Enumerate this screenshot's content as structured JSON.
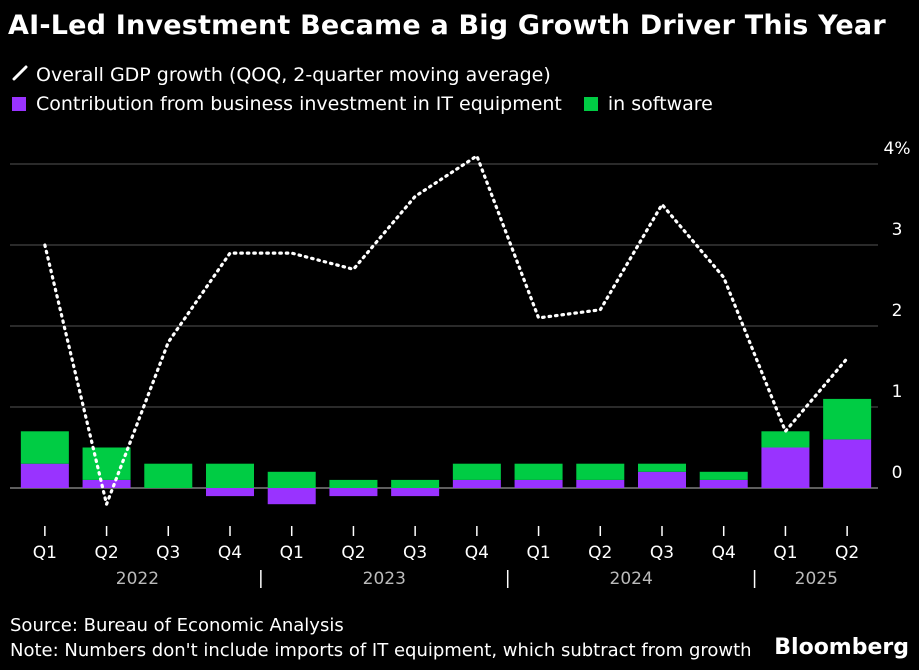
{
  "title": "AI-Led Investment Became a Big Growth Driver This Year",
  "legend": {
    "line_label": "Overall GDP growth (QOQ, 2-quarter moving average)",
    "it_label": "Contribution from business investment in IT equipment",
    "software_label": "in software"
  },
  "footer": {
    "source": "Source: Bureau of Economic Analysis",
    "note": "Note: Numbers don't include imports of IT equipment, which subtract from growth",
    "brand": "Bloomberg"
  },
  "colors": {
    "it": "#9933ff",
    "software": "#00cc44",
    "line": "#ffffff",
    "grid": "#555555",
    "background": "#000000"
  },
  "chart_data": {
    "type": "bar",
    "categories": [
      "Q1",
      "Q2",
      "Q3",
      "Q4",
      "Q1",
      "Q2",
      "Q3",
      "Q4",
      "Q1",
      "Q2",
      "Q3",
      "Q4",
      "Q1",
      "Q2"
    ],
    "years": [
      {
        "label": "2022",
        "start": 0,
        "end": 3
      },
      {
        "label": "2023",
        "start": 4,
        "end": 7
      },
      {
        "label": "2024",
        "start": 8,
        "end": 11
      },
      {
        "label": "2025",
        "start": 12,
        "end": 13
      }
    ],
    "series": [
      {
        "name": "Contribution from business investment in IT equipment",
        "values": [
          0.3,
          0.1,
          0.0,
          -0.1,
          -0.2,
          -0.1,
          -0.1,
          0.1,
          0.1,
          0.1,
          0.2,
          0.1,
          0.5,
          0.6
        ]
      },
      {
        "name": "in software",
        "values": [
          0.4,
          0.4,
          0.3,
          0.3,
          0.2,
          0.1,
          0.1,
          0.2,
          0.2,
          0.2,
          0.1,
          0.1,
          0.2,
          0.5
        ]
      },
      {
        "name": "Overall GDP growth (QOQ, 2-quarter moving average)",
        "values": [
          3.0,
          -0.2,
          1.8,
          2.9,
          2.9,
          2.7,
          3.6,
          4.1,
          2.1,
          2.2,
          3.5,
          2.6,
          0.7,
          1.6
        ]
      }
    ],
    "ylim": [
      -0.3,
      4.2
    ],
    "yticks": [
      0,
      1,
      2,
      3,
      4
    ],
    "ytick_labels": [
      "0",
      "1",
      "2",
      "3",
      "4%"
    ],
    "grid": true
  }
}
